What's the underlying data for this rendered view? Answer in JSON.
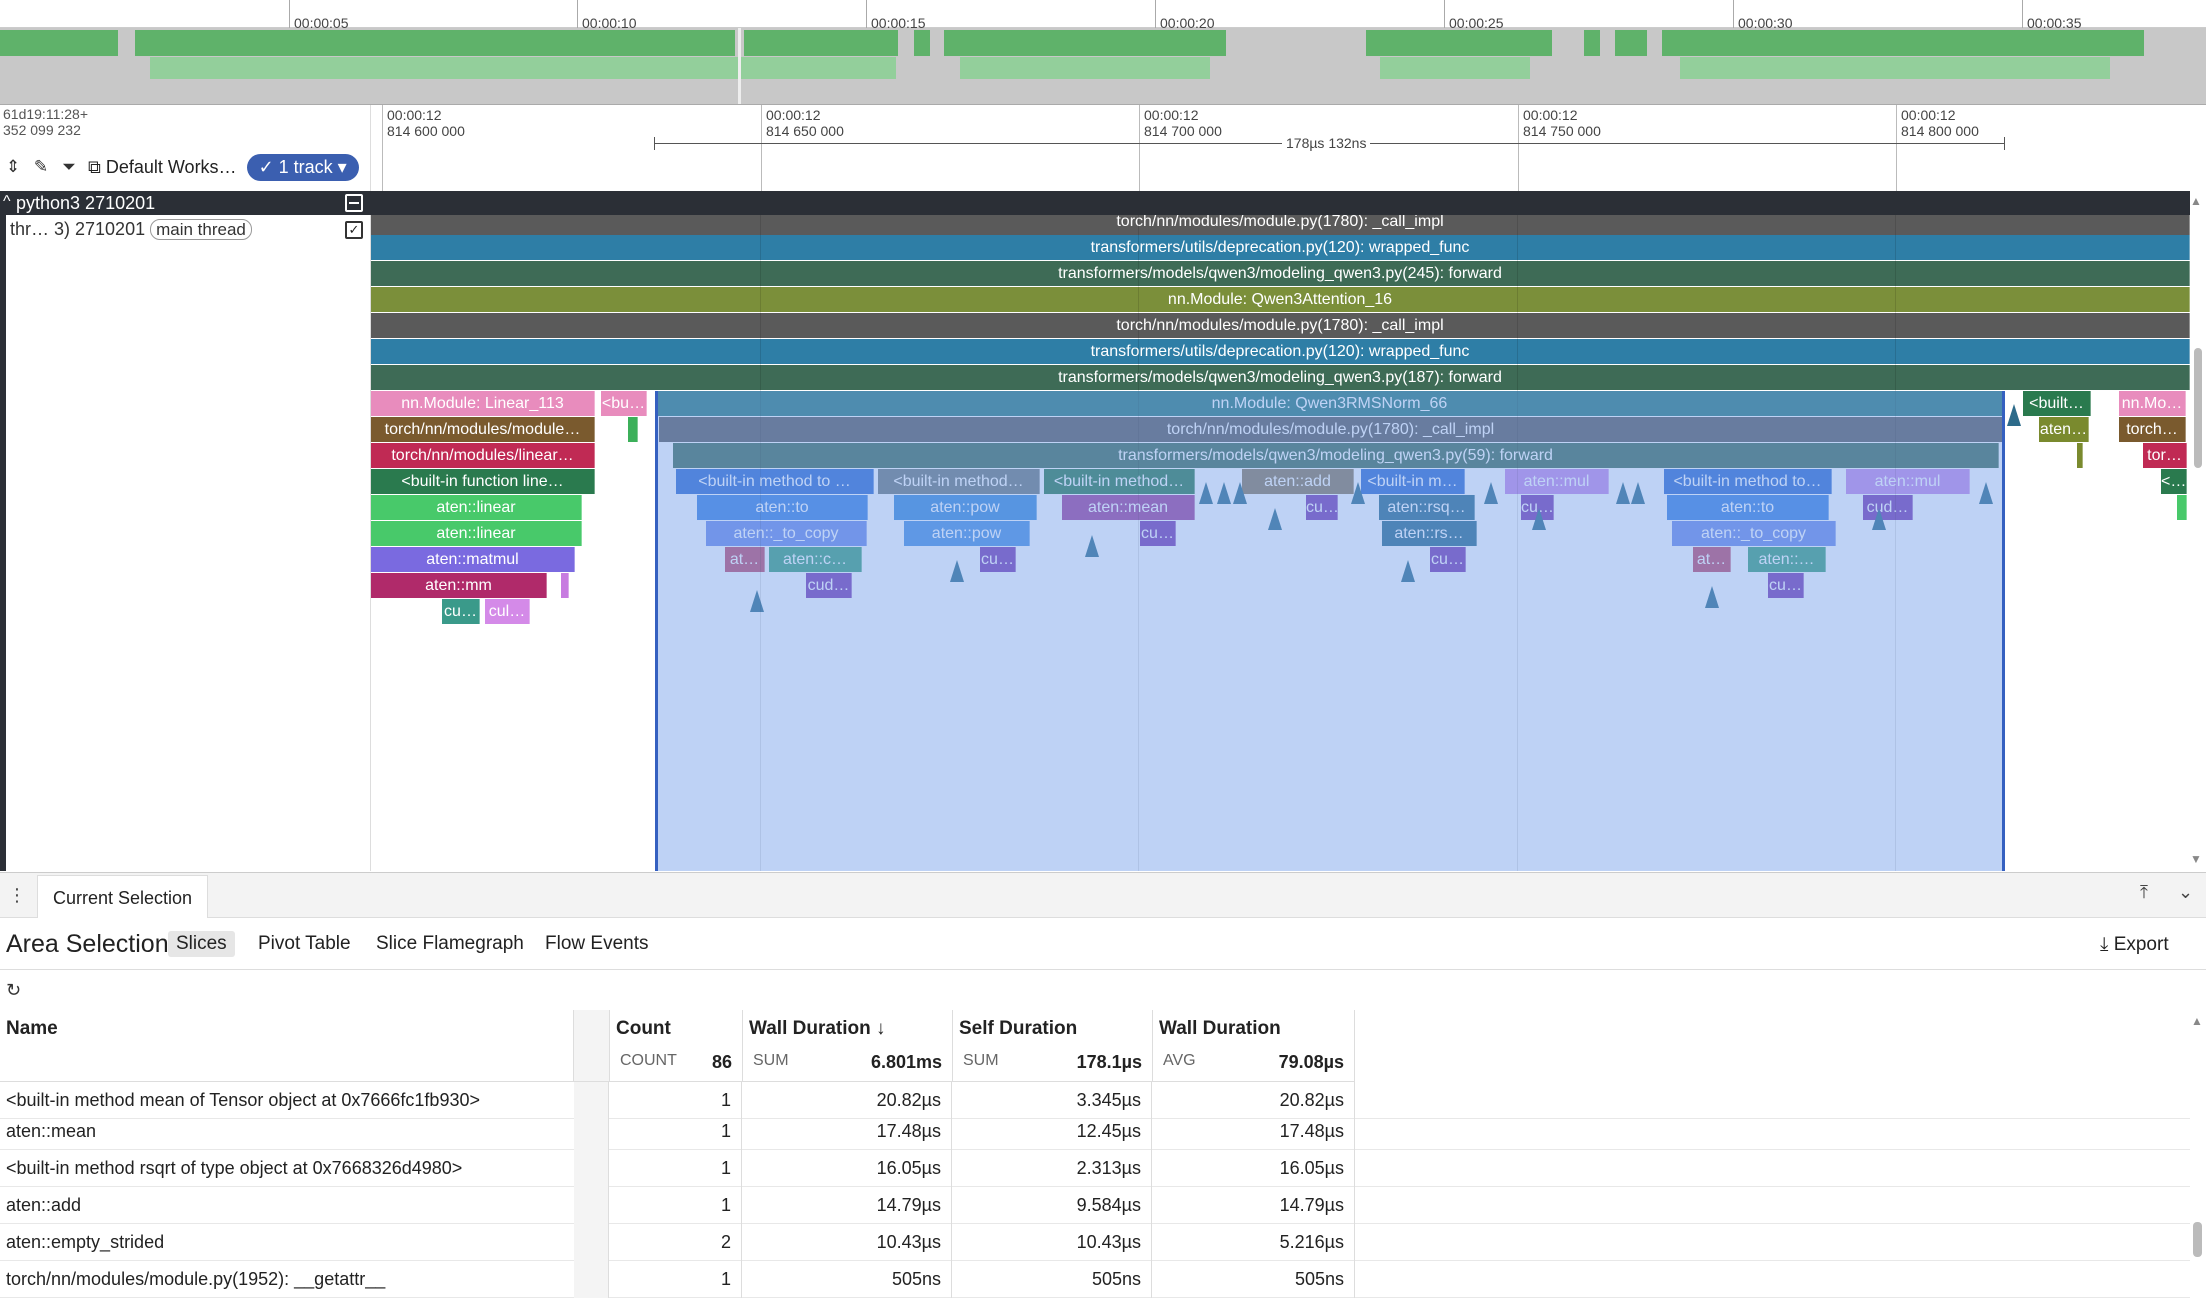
{
  "overview": {
    "ticks": [
      "00:00:05",
      "00:00:10",
      "00:00:15",
      "00:00:20",
      "00:00:25",
      "00:00:30",
      "00:00:35"
    ]
  },
  "toolbar": {
    "timestamp_line1": "61d19:11:28+",
    "timestamp_line2": "352 099 232",
    "workspace_label": "Default Works…",
    "track_pill": "✓ 1 track ▾"
  },
  "ruler": {
    "ticks": [
      {
        "top": "00:00:12",
        "bottom": "814 600 000"
      },
      {
        "top": "00:00:12",
        "bottom": "814 650 000"
      },
      {
        "top": "00:00:12",
        "bottom": "814 700 000"
      },
      {
        "top": "00:00:12",
        "bottom": "814 750 000"
      },
      {
        "top": "00:00:12",
        "bottom": "814 800 000"
      }
    ],
    "selection_duration": "178µs 132ns"
  },
  "tracks": {
    "process_title": "python3 2710201",
    "thread_label": "thr… 3) 2710201",
    "thread_chip": "main thread"
  },
  "slices": {
    "row0": "torch/nn/modules/module.py(1780): _call_impl",
    "row1": "transformers/utils/deprecation.py(120): wrapped_func",
    "row2": "transformers/models/qwen3/modeling_qwen3.py(245): forward",
    "row3": "nn.Module: Qwen3Attention_16",
    "row4": "torch/nn/modules/module.py(1780): _call_impl",
    "row5": "transformers/utils/deprecation.py(120): wrapped_func",
    "row6": "transformers/models/qwen3/modeling_qwen3.py(187): forward",
    "row7_main": "nn.Module: Qwen3RMSNorm_66",
    "row8_main": "torch/nn/modules/module.py(1780): _call_impl",
    "row9_main": "transformers/models/qwen3/modeling_qwen3.py(59): forward",
    "left": [
      "nn.Module: Linear_113",
      "torch/nn/modules/module…",
      "torch/nn/modules/linear…",
      "<built-in function line…",
      "aten::linear",
      "aten::linear",
      "aten::matmul",
      "aten::mm",
      "cu…",
      "cul…",
      "<bu…"
    ],
    "right": [
      "<built…",
      "nn.Mo…",
      "aten…",
      "torch…",
      "tor…",
      "<…"
    ],
    "sel": [
      "<built-in method to …",
      "<built-in method…",
      "<built-in method…",
      "aten::add",
      "<built-in m…",
      "aten::mul",
      "<built-in method to…",
      "aten::mul",
      "aten::to",
      "aten::pow",
      "aten::mean",
      "cu…",
      "aten::rsq…",
      "cu…",
      "aten::to",
      "cud…",
      "aten::_to_copy",
      "aten::pow",
      "cu…",
      "aten::rs…",
      "aten::_to_copy",
      "at…",
      "aten::c…",
      "cu…",
      "cu…",
      "at…",
      "aten::…",
      "cud…",
      "cu…"
    ]
  },
  "panel": {
    "tab": "Current Selection",
    "area_title": "Area Selection",
    "subtabs": [
      "Slices",
      "Pivot Table",
      "Slice Flamegraph",
      "Flow Events"
    ],
    "export": "Export"
  },
  "table": {
    "columns": [
      {
        "name": "Name",
        "agg": "",
        "val": ""
      },
      {
        "name": "Count",
        "agg": "COUNT",
        "val": "86"
      },
      {
        "name": "Wall Duration ↓",
        "agg": "SUM",
        "val": "6.801ms"
      },
      {
        "name": "Self Duration",
        "agg": "SUM",
        "val": "178.1µs"
      },
      {
        "name": "Wall Duration",
        "agg": "AVG",
        "val": "79.08µs"
      }
    ],
    "rows": [
      {
        "name": "<built-in method mean of Tensor object at 0x7666fc1fb930>",
        "count": "1",
        "wall": "20.82µs",
        "self": "3.345µs",
        "avg": "20.82µs"
      },
      {
        "name": "aten::mean",
        "count": "1",
        "wall": "17.48µs",
        "self": "12.45µs",
        "avg": "17.48µs"
      },
      {
        "name": "<built-in method rsqrt of type object at 0x7668326d4980>",
        "count": "1",
        "wall": "16.05µs",
        "self": "2.313µs",
        "avg": "16.05µs"
      },
      {
        "name": "aten::add",
        "count": "1",
        "wall": "14.79µs",
        "self": "9.584µs",
        "avg": "14.79µs"
      },
      {
        "name": "aten::empty_strided",
        "count": "2",
        "wall": "10.43µs",
        "self": "10.43µs",
        "avg": "5.216µs"
      },
      {
        "name": "torch/nn/modules/module.py(1952): __getattr__",
        "count": "1",
        "wall": "505ns",
        "self": "505ns",
        "avg": "505ns"
      }
    ]
  },
  "colors": {
    "selection": "#7aa0eb",
    "process_bar": "#2b2f36",
    "accent": "#3b5fb0"
  }
}
